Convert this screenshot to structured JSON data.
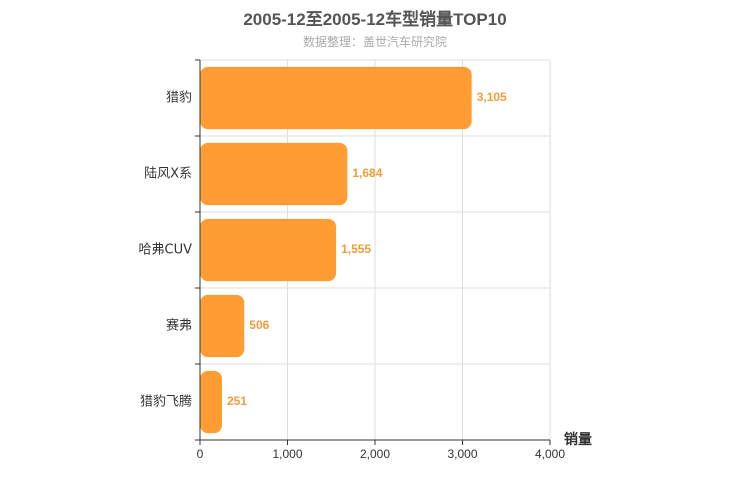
{
  "title": "2005-12至2005-12车型销量TOP10",
  "subtitle": "数据整理：盖世汽车研究院",
  "colors": {
    "bar": "#ff9c33",
    "data_label": "#f39c3a",
    "grid": "#dddddd",
    "axis": "#333333"
  },
  "chart_data": {
    "type": "bar",
    "orientation": "horizontal",
    "title": "2005-12至2005-12车型销量TOP10",
    "subtitle": "数据整理：盖世汽车研究院",
    "xlabel": "销量",
    "ylabel": "",
    "categories": [
      "猎豹",
      "陆风X系",
      "哈弗CUV",
      "赛弗",
      "猎豹飞腾"
    ],
    "values": [
      3105,
      1684,
      1555,
      506,
      251
    ],
    "value_labels": [
      "3,105",
      "1,684",
      "1,555",
      "506",
      "251"
    ],
    "xlim": [
      0,
      4000
    ],
    "x_ticks": [
      0,
      1000,
      2000,
      3000,
      4000
    ],
    "x_tick_labels": [
      "0",
      "1,000",
      "2,000",
      "3,000",
      "4,000"
    ],
    "grid": true,
    "legend": "none"
  }
}
